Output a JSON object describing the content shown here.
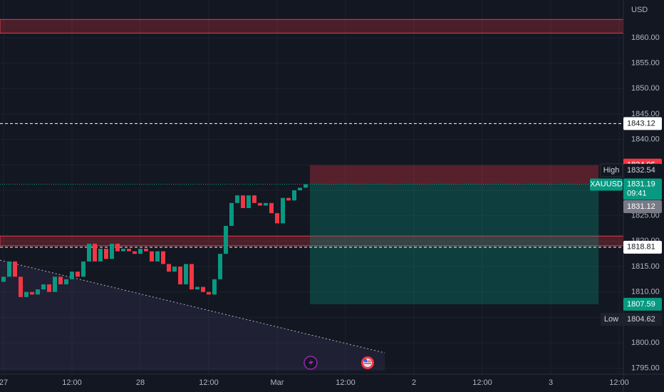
{
  "chart_data": {
    "type": "candlestick",
    "currency": "USD",
    "x": [
      0,
      1,
      2,
      3,
      4,
      5,
      6,
      7,
      8,
      9,
      10,
      11,
      12,
      13,
      14,
      15,
      16,
      17,
      18,
      19,
      20,
      21,
      22,
      23,
      24,
      25,
      26,
      27,
      28,
      29,
      30,
      31,
      32,
      33,
      34,
      35,
      36,
      37,
      38,
      39,
      40,
      41,
      42,
      43,
      44,
      45,
      46,
      47,
      48,
      49,
      50,
      51,
      52,
      53
    ],
    "open": [
      1812,
      1813,
      1816,
      1813,
      1809,
      1810,
      1809.5,
      1810.5,
      1811.5,
      1810,
      1813,
      1811.5,
      1812.5,
      1814,
      1813,
      1816,
      1819.5,
      1816,
      1818.5,
      1816.5,
      1819.5,
      1818,
      1818.5,
      1818,
      1817.5,
      1818.5,
      1818,
      1816,
      1818,
      1815.5,
      1814,
      1815,
      1811.5,
      1815.5,
      1810.5,
      1811,
      1810,
      1809.5,
      1812.5,
      1817.5,
      1823,
      1827.5,
      1829,
      1826.5,
      1829,
      1827.5,
      1827,
      1827.5,
      1825.5,
      1823.5,
      1828.5,
      1828,
      1830,
      1830.5
    ],
    "high": {
      "name": "High",
      "value": 1832.54,
      "label": "1832.54"
    },
    "low": {
      "name": "Low",
      "value": 1804.62,
      "label": "1804.62"
    },
    "close": [
      1813,
      1816,
      1813,
      1809,
      1810,
      1809.5,
      1810.5,
      1811.5,
      1810,
      1813,
      1811.5,
      1812.5,
      1814,
      1813,
      1816,
      1819.5,
      1816,
      1818.5,
      1816.5,
      1819.5,
      1818,
      1818.5,
      1818,
      1817.5,
      1818.5,
      1818,
      1816,
      1818,
      1815.5,
      1814,
      1815,
      1811.5,
      1815.5,
      1810.5,
      1811,
      1810,
      1809.5,
      1812.5,
      1817.5,
      1823,
      1827.5,
      1829,
      1826.5,
      1829,
      1827.5,
      1827,
      1827.5,
      1825.5,
      1823.5,
      1828.5,
      1828,
      1830,
      1830.5,
      1831.19
    ],
    "up_color": "#089981",
    "down_color": "#f23645",
    "xlim": [
      -0.625,
      108.125
    ],
    "xticks": [
      {
        "value": 0,
        "label": "27"
      },
      {
        "value": 12,
        "label": "12:00"
      },
      {
        "value": 24,
        "label": "28"
      },
      {
        "value": 36,
        "label": "12:00"
      },
      {
        "value": 48,
        "label": "Mar"
      },
      {
        "value": 60,
        "label": "12:00"
      },
      {
        "value": 72,
        "label": "2"
      },
      {
        "value": 84,
        "label": "12:00"
      },
      {
        "value": 96,
        "label": "3"
      },
      {
        "value": 108,
        "label": "12:00"
      }
    ],
    "ylim": [
      1793.83,
      1867.43
    ],
    "yticks": [
      {
        "value": 1795,
        "label": "1795.00"
      },
      {
        "value": 1800,
        "label": "1800.00"
      },
      {
        "value": 1805,
        "label": "1805.00"
      },
      {
        "value": 1810,
        "label": "1810.00"
      },
      {
        "value": 1815,
        "label": "1815.00"
      },
      {
        "value": 1820,
        "label": "1820.00"
      },
      {
        "value": 1825,
        "label": "1825.00"
      },
      {
        "value": 1830,
        "label": "1830.00"
      },
      {
        "value": 1835,
        "label": "1835.00"
      },
      {
        "value": 1840,
        "label": "1840.00"
      },
      {
        "value": 1845,
        "label": "1845.00"
      },
      {
        "value": 1850,
        "label": "1850.00"
      },
      {
        "value": 1855,
        "label": "1855.00"
      },
      {
        "value": 1860,
        "label": "1860.00"
      }
    ],
    "grid": true,
    "zones": [
      {
        "from": 1860.9,
        "to": 1863.6
      },
      {
        "from": 1819.1,
        "to": 1821.0
      }
    ],
    "levels": [
      {
        "value": 1843.12,
        "label": "1843.12"
      },
      {
        "value": 1818.81,
        "label": "1818.81"
      }
    ],
    "position": {
      "x": [
        53.75,
        104.4
      ],
      "stop": {
        "value": 1834.95,
        "label": "1834.95"
      },
      "entry": 1831.19,
      "target": {
        "value": 1807.59,
        "label": "1807.59"
      }
    },
    "trendline": {
      "x": [
        -0.625,
        66.9
      ],
      "y": [
        1816.26,
        1798.03
      ]
    },
    "last": {
      "symbol": "XAUUSD",
      "value": 1831.19,
      "label": "1831.19",
      "countdown": "09:41"
    },
    "bid": {
      "value": 1831.12,
      "label": "1831.12"
    }
  }
}
